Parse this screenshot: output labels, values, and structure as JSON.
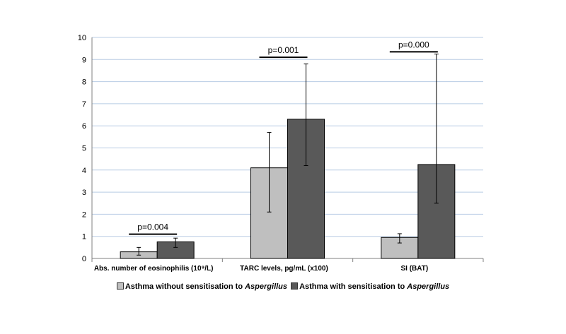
{
  "chart_data": {
    "type": "bar",
    "title": "",
    "xlabel": "",
    "ylabel": "",
    "ylim": [
      0,
      10
    ],
    "yticks": [
      0,
      1,
      2,
      3,
      4,
      5,
      6,
      7,
      8,
      9,
      10
    ],
    "grid": true,
    "categories": [
      "Abs. number of eosinophilis (10⁹/L)",
      "TARC levels, pg/mL (x100)",
      "SI (BAT)"
    ],
    "series": [
      {
        "name": "Asthma without sensitisation to Aspergillus",
        "color": "#bfbfbf",
        "values": [
          0.3,
          4.1,
          0.95
        ],
        "error_low": [
          0.15,
          2.1,
          0.7
        ],
        "error_high": [
          0.5,
          5.7,
          1.12
        ]
      },
      {
        "name": "Asthma with sensitisation to Aspergillus",
        "color": "#595959",
        "values": [
          0.75,
          6.3,
          4.25
        ],
        "error_low": [
          0.5,
          4.2,
          2.5
        ],
        "error_high": [
          0.92,
          8.8,
          9.25
        ]
      }
    ],
    "annotations": [
      {
        "category_index": 0,
        "text": "p=0.004",
        "y": 1.1
      },
      {
        "category_index": 1,
        "text": "p=0.001",
        "y": 9.1
      },
      {
        "category_index": 2,
        "text": "p=0.000",
        "y": 9.35
      }
    ],
    "legend": {
      "placement": "bottom",
      "items": [
        {
          "prefix": "Asthma without sensitisation to ",
          "italic": "Aspergillus",
          "color": "#bfbfbf"
        },
        {
          "prefix": "Asthma with sensitisation to ",
          "italic": "Aspergillus",
          "color": "#595959"
        }
      ]
    }
  }
}
